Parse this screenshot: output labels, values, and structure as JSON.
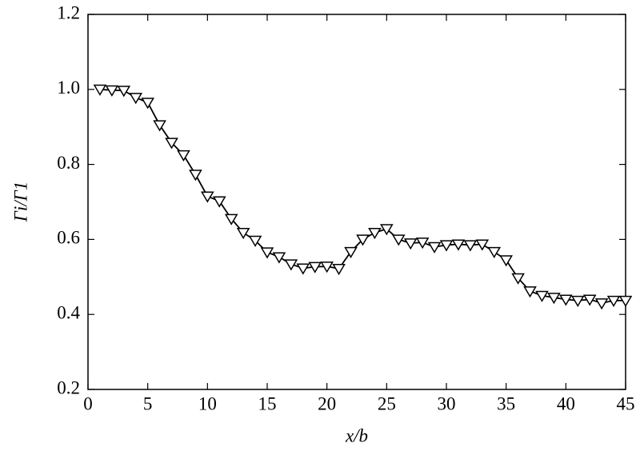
{
  "chart_data": {
    "type": "line",
    "xlabel": "x/b",
    "ylabel": "Γi/Γ1",
    "x": [
      1,
      2,
      3,
      4,
      5,
      6,
      7,
      8,
      9,
      10,
      11,
      12,
      13,
      14,
      15,
      16,
      17,
      18,
      19,
      20,
      21,
      22,
      23,
      24,
      25,
      26,
      27,
      28,
      29,
      30,
      31,
      32,
      33,
      34,
      35,
      36,
      37,
      38,
      39,
      40,
      41,
      42,
      43,
      44,
      45
    ],
    "values": [
      1.0,
      0.998,
      0.997,
      0.978,
      0.965,
      0.905,
      0.858,
      0.825,
      0.773,
      0.715,
      0.702,
      0.655,
      0.618,
      0.597,
      0.566,
      0.553,
      0.534,
      0.523,
      0.527,
      0.528,
      0.522,
      0.567,
      0.6,
      0.618,
      0.628,
      0.6,
      0.59,
      0.592,
      0.58,
      0.585,
      0.587,
      0.585,
      0.587,
      0.567,
      0.545,
      0.497,
      0.462,
      0.45,
      0.445,
      0.44,
      0.437,
      0.44,
      0.43,
      0.437,
      0.437
    ],
    "color": "#000000",
    "xlim": [
      0,
      45
    ],
    "xticks": [
      0,
      5,
      10,
      15,
      20,
      25,
      30,
      35,
      40,
      45
    ],
    "ylim": [
      0.2,
      1.2
    ],
    "yticks": [
      0.2,
      0.4,
      0.6,
      0.8,
      {
        "value": 1,
        "label": "1.0"
      },
      1.2
    ]
  }
}
